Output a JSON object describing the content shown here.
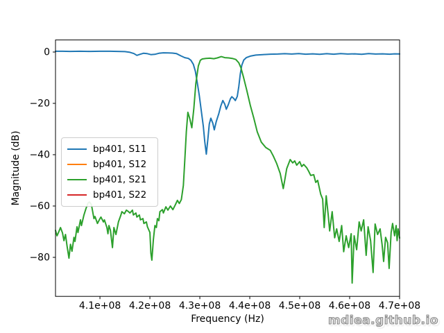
{
  "watermark": {
    "text": "mdiea.github.io"
  },
  "chart_data": {
    "type": "line",
    "title": "",
    "xlabel": "Frequency (Hz)",
    "ylabel": "Magnitude (dB)",
    "grid": false,
    "legend_position": "center-left",
    "x_points_unit": "MHz",
    "x_axis_unit": "Hz",
    "xlim_mhz": [
      401.1,
      470.0
    ],
    "ylim_db": [
      -95.2,
      4.7
    ],
    "x_ticks": [
      {
        "mhz": 410,
        "label": "4.1e+08"
      },
      {
        "mhz": 420,
        "label": "4.2e+08"
      },
      {
        "mhz": 430,
        "label": "4.3e+08"
      },
      {
        "mhz": 440,
        "label": "4.4e+08"
      },
      {
        "mhz": 450,
        "label": "4.5e+08"
      },
      {
        "mhz": 460,
        "label": "4.6e+08"
      },
      {
        "mhz": 470,
        "label": "4.7e+08"
      }
    ],
    "y_ticks": [
      {
        "db": 0,
        "label": "0"
      },
      {
        "db": -20,
        "label": "−20"
      },
      {
        "db": -40,
        "label": "−40"
      },
      {
        "db": -60,
        "label": "−60"
      },
      {
        "db": -80,
        "label": "−80"
      }
    ],
    "series": [
      {
        "name": "bp401, S11",
        "color": "#1f77b4",
        "visible": true,
        "points": [
          [
            401.1,
            0.3
          ],
          [
            402.5,
            0.3
          ],
          [
            404.0,
            0.25
          ],
          [
            406.0,
            0.3
          ],
          [
            408.0,
            0.25
          ],
          [
            410.0,
            0.3
          ],
          [
            412.0,
            0.3
          ],
          [
            413.5,
            0.25
          ],
          [
            415.0,
            0.15
          ],
          [
            416.0,
            -0.1
          ],
          [
            416.8,
            -0.6
          ],
          [
            417.4,
            -1.3
          ],
          [
            418.0,
            -0.9
          ],
          [
            418.7,
            -0.5
          ],
          [
            419.4,
            -0.6
          ],
          [
            420.2,
            -1.0
          ],
          [
            421.0,
            -0.9
          ],
          [
            421.8,
            -0.5
          ],
          [
            422.7,
            -0.3
          ],
          [
            423.6,
            -0.35
          ],
          [
            424.5,
            -0.4
          ],
          [
            425.3,
            -0.6
          ],
          [
            426.2,
            -1.5
          ],
          [
            427.0,
            -2.2
          ],
          [
            427.7,
            -2.5
          ],
          [
            428.2,
            -3.2
          ],
          [
            428.7,
            -4.8
          ],
          [
            429.1,
            -7.5
          ],
          [
            429.5,
            -12.0
          ],
          [
            429.9,
            -17.0
          ],
          [
            430.3,
            -23.0
          ],
          [
            430.7,
            -29.0
          ],
          [
            431.0,
            -35.0
          ],
          [
            431.3,
            -39.8
          ],
          [
            431.6,
            -34.0
          ],
          [
            431.9,
            -28.0
          ],
          [
            432.2,
            -25.8
          ],
          [
            432.6,
            -27.8
          ],
          [
            432.9,
            -30.3
          ],
          [
            433.3,
            -27.0
          ],
          [
            433.8,
            -24.0
          ],
          [
            434.2,
            -21.0
          ],
          [
            434.6,
            -18.9
          ],
          [
            435.0,
            -20.3
          ],
          [
            435.3,
            -22.3
          ],
          [
            435.7,
            -20.5
          ],
          [
            436.1,
            -18.3
          ],
          [
            436.4,
            -17.4
          ],
          [
            436.8,
            -18.1
          ],
          [
            437.1,
            -18.9
          ],
          [
            437.5,
            -17.3
          ],
          [
            437.8,
            -13.5
          ],
          [
            438.1,
            -8.5
          ],
          [
            438.4,
            -5.2
          ],
          [
            438.8,
            -3.1
          ],
          [
            439.3,
            -2.2
          ],
          [
            440.1,
            -1.6
          ],
          [
            441.2,
            -1.2
          ],
          [
            442.6,
            -1.0
          ],
          [
            444.1,
            -0.85
          ],
          [
            445.6,
            -0.8
          ],
          [
            447.0,
            -0.65
          ],
          [
            448.4,
            -0.8
          ],
          [
            449.8,
            -0.6
          ],
          [
            451.2,
            -0.85
          ],
          [
            452.6,
            -0.7
          ],
          [
            454.0,
            -0.9
          ],
          [
            455.4,
            -0.65
          ],
          [
            456.8,
            -0.85
          ],
          [
            458.2,
            -0.6
          ],
          [
            459.6,
            -0.8
          ],
          [
            461.0,
            -0.7
          ],
          [
            462.4,
            -0.9
          ],
          [
            463.8,
            -0.6
          ],
          [
            465.2,
            -0.8
          ],
          [
            466.6,
            -0.7
          ],
          [
            468.0,
            -0.85
          ],
          [
            469.0,
            -0.7
          ],
          [
            470.0,
            -0.75
          ]
        ]
      },
      {
        "name": "bp401, S12",
        "color": "#ff7f0e",
        "visible": false,
        "note": "curve not visible in image (overlapped by S21)",
        "points": []
      },
      {
        "name": "bp401, S21",
        "color": "#2ca02c",
        "visible": true,
        "points": [
          [
            401.1,
            -69.5
          ],
          [
            401.4,
            -71.6
          ],
          [
            401.7,
            -70.3
          ],
          [
            402.1,
            -68.4
          ],
          [
            402.5,
            -70.5
          ],
          [
            402.8,
            -73.5
          ],
          [
            403.1,
            -71.1
          ],
          [
            403.4,
            -75.5
          ],
          [
            403.8,
            -80.3
          ],
          [
            404.1,
            -74.9
          ],
          [
            404.4,
            -77.6
          ],
          [
            404.8,
            -72.2
          ],
          [
            405.0,
            -73.8
          ],
          [
            405.4,
            -68.1
          ],
          [
            405.6,
            -70.3
          ],
          [
            406.1,
            -65.4
          ],
          [
            406.3,
            -67.6
          ],
          [
            406.8,
            -63.5
          ],
          [
            407.2,
            -61.0
          ],
          [
            407.6,
            -58.9
          ],
          [
            407.9,
            -58.4
          ],
          [
            408.3,
            -59.5
          ],
          [
            408.8,
            -64.9
          ],
          [
            409.0,
            -64.1
          ],
          [
            409.5,
            -66.8
          ],
          [
            410.0,
            -64.9
          ],
          [
            410.2,
            -64.3
          ],
          [
            410.7,
            -66.2
          ],
          [
            410.9,
            -65.4
          ],
          [
            411.4,
            -68.4
          ],
          [
            411.6,
            -70.8
          ],
          [
            411.8,
            -67.6
          ],
          [
            412.1,
            -69.5
          ],
          [
            412.5,
            -76.2
          ],
          [
            412.8,
            -68.4
          ],
          [
            413.2,
            -71.1
          ],
          [
            413.7,
            -66.2
          ],
          [
            414.2,
            -63.5
          ],
          [
            414.4,
            -62.2
          ],
          [
            414.9,
            -63.0
          ],
          [
            415.3,
            -61.6
          ],
          [
            415.6,
            -62.0
          ],
          [
            416.0,
            -62.7
          ],
          [
            416.5,
            -61.6
          ],
          [
            416.7,
            -63.5
          ],
          [
            417.2,
            -62.7
          ],
          [
            417.4,
            -64.3
          ],
          [
            417.9,
            -63.5
          ],
          [
            418.1,
            -65.4
          ],
          [
            418.6,
            -64.9
          ],
          [
            418.8,
            -66.8
          ],
          [
            419.3,
            -66.2
          ],
          [
            419.5,
            -68.1
          ],
          [
            420.0,
            -70.3
          ],
          [
            420.2,
            -78.4
          ],
          [
            420.4,
            -81.1
          ],
          [
            420.7,
            -73.0
          ],
          [
            421.0,
            -67.6
          ],
          [
            421.3,
            -68.4
          ],
          [
            421.5,
            -64.9
          ],
          [
            421.8,
            -65.7
          ],
          [
            422.0,
            -62.2
          ],
          [
            422.5,
            -61.4
          ],
          [
            422.7,
            -62.7
          ],
          [
            423.2,
            -60.3
          ],
          [
            423.6,
            -61.6
          ],
          [
            424.1,
            -60.0
          ],
          [
            424.6,
            -61.4
          ],
          [
            425.1,
            -59.5
          ],
          [
            425.5,
            -57.8
          ],
          [
            425.9,
            -59.0
          ],
          [
            426.3,
            -57.5
          ],
          [
            426.7,
            -52.0
          ],
          [
            427.0,
            -42.0
          ],
          [
            427.3,
            -31.0
          ],
          [
            427.6,
            -23.5
          ],
          [
            428.0,
            -26.0
          ],
          [
            428.4,
            -29.5
          ],
          [
            428.8,
            -22.0
          ],
          [
            429.2,
            -12.2
          ],
          [
            429.7,
            -5.4
          ],
          [
            430.1,
            -3.2
          ],
          [
            430.5,
            -2.7
          ],
          [
            431.2,
            -2.5
          ],
          [
            432.0,
            -2.4
          ],
          [
            432.8,
            -2.6
          ],
          [
            433.5,
            -2.3
          ],
          [
            434.3,
            -1.8
          ],
          [
            435.0,
            -2.2
          ],
          [
            435.8,
            -2.3
          ],
          [
            436.5,
            -2.5
          ],
          [
            437.2,
            -2.9
          ],
          [
            437.8,
            -4.2
          ],
          [
            438.2,
            -6.0
          ],
          [
            438.7,
            -9.5
          ],
          [
            439.4,
            -14.9
          ],
          [
            440.1,
            -20.8
          ],
          [
            440.8,
            -25.7
          ],
          [
            441.5,
            -31.1
          ],
          [
            442.3,
            -35.1
          ],
          [
            443.2,
            -37.2
          ],
          [
            444.1,
            -38.3
          ],
          [
            444.7,
            -40.5
          ],
          [
            445.4,
            -43.5
          ],
          [
            446.1,
            -47.3
          ],
          [
            446.7,
            -53.2
          ],
          [
            447.0,
            -50.0
          ],
          [
            447.4,
            -45.4
          ],
          [
            448.1,
            -41.9
          ],
          [
            448.6,
            -43.2
          ],
          [
            449.0,
            -42.4
          ],
          [
            449.4,
            -44.1
          ],
          [
            450.0,
            -42.7
          ],
          [
            450.4,
            -44.6
          ],
          [
            450.8,
            -43.8
          ],
          [
            451.4,
            -45.1
          ],
          [
            451.8,
            -46.5
          ],
          [
            452.2,
            -48.1
          ],
          [
            452.8,
            -47.8
          ],
          [
            453.2,
            -50.8
          ],
          [
            453.6,
            -50.0
          ],
          [
            454.2,
            -55.4
          ],
          [
            454.6,
            -57.3
          ],
          [
            454.9,
            -68.4
          ],
          [
            455.3,
            -56.0
          ],
          [
            455.7,
            -63.5
          ],
          [
            456.0,
            -69.7
          ],
          [
            456.5,
            -62.2
          ],
          [
            457.0,
            -72.4
          ],
          [
            457.4,
            -68.9
          ],
          [
            457.9,
            -73.8
          ],
          [
            458.4,
            -67.6
          ],
          [
            458.8,
            -77.8
          ],
          [
            459.3,
            -71.6
          ],
          [
            459.8,
            -76.2
          ],
          [
            460.3,
            -70.8
          ],
          [
            460.5,
            -90.0
          ],
          [
            460.9,
            -71.6
          ],
          [
            461.4,
            -77.0
          ],
          [
            461.9,
            -66.2
          ],
          [
            462.3,
            -69.7
          ],
          [
            462.8,
            -65.4
          ],
          [
            463.3,
            -79.2
          ],
          [
            463.7,
            -68.1
          ],
          [
            464.2,
            -73.5
          ],
          [
            464.7,
            -85.9
          ],
          [
            465.1,
            -67.0
          ],
          [
            465.6,
            -71.1
          ],
          [
            466.1,
            -68.9
          ],
          [
            466.5,
            -75.1
          ],
          [
            466.8,
            -81.6
          ],
          [
            467.2,
            -72.2
          ],
          [
            467.6,
            -74.3
          ],
          [
            467.9,
            -84.3
          ],
          [
            468.3,
            -70.3
          ],
          [
            468.6,
            -66.8
          ],
          [
            469.0,
            -71.6
          ],
          [
            469.3,
            -67.6
          ],
          [
            469.5,
            -73.5
          ],
          [
            469.7,
            -68.9
          ],
          [
            470.0,
            -72.5
          ]
        ]
      },
      {
        "name": "bp401, S22",
        "color": "#d62728",
        "visible": false,
        "note": "curve not visible in image (overlapped)",
        "points": []
      }
    ]
  }
}
